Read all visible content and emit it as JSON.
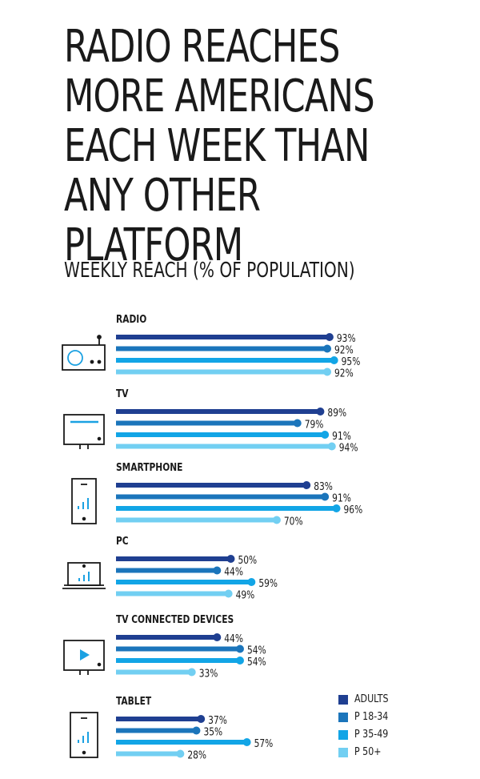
{
  "title": "RADIO REACHES MORE AMERICANS EACH WEEK THAN ANY OTHER PLATFORM",
  "subtitle": "WEEKLY REACH (% OF POPULATION)",
  "colors": {
    "adults": "#1f3f91",
    "p18_34": "#1b75bb",
    "p35_49": "#12a5e6",
    "p50": "#72cff2",
    "icon": "#1a1a1a",
    "icon_accent": "#1ba1e2"
  },
  "legend": [
    {
      "label": "ADULTS",
      "color": "#1f3f91"
    },
    {
      "label": "P 18-34",
      "color": "#1b75bb"
    },
    {
      "label": "P 35-49",
      "color": "#12a5e6"
    },
    {
      "label": "P 50+",
      "color": "#72cff2"
    }
  ],
  "chart_data": {
    "type": "bar",
    "orientation": "horizontal",
    "title": "RADIO REACHES MORE AMERICANS EACH WEEK THAN ANY OTHER PLATFORM",
    "subtitle": "WEEKLY REACH (% OF POPULATION)",
    "categories": [
      "RADIO",
      "TV",
      "SMARTPHONE",
      "PC",
      "TV CONNECTED DEVICES",
      "TABLET"
    ],
    "category_icons": [
      "radio-icon",
      "tv-icon",
      "smartphone-icon",
      "pc-icon",
      "tv-connected-device-icon",
      "tablet-icon"
    ],
    "series": [
      {
        "name": "ADULTS",
        "values": [
          93,
          89,
          83,
          50,
          44,
          37
        ]
      },
      {
        "name": "P 18-34",
        "values": [
          92,
          79,
          91,
          44,
          54,
          35
        ]
      },
      {
        "name": "P 35-49",
        "values": [
          95,
          91,
          96,
          59,
          54,
          57
        ]
      },
      {
        "name": "P 50+",
        "values": [
          92,
          94,
          70,
          49,
          33,
          28
        ]
      }
    ],
    "value_labels": [
      [
        "93%",
        "92%",
        "95%",
        "92%"
      ],
      [
        "89%",
        "79%",
        "91%",
        "94%"
      ],
      [
        "83%",
        "91%",
        "96%",
        "70%"
      ],
      [
        "50%",
        "44%",
        "59%",
        "49%"
      ],
      [
        "44%",
        "54%",
        "54%",
        "33%"
      ],
      [
        "37%",
        "35%",
        "57%",
        "28%"
      ]
    ],
    "xlim": [
      0,
      100
    ],
    "legend_position": "bottom-right",
    "grid": false
  }
}
